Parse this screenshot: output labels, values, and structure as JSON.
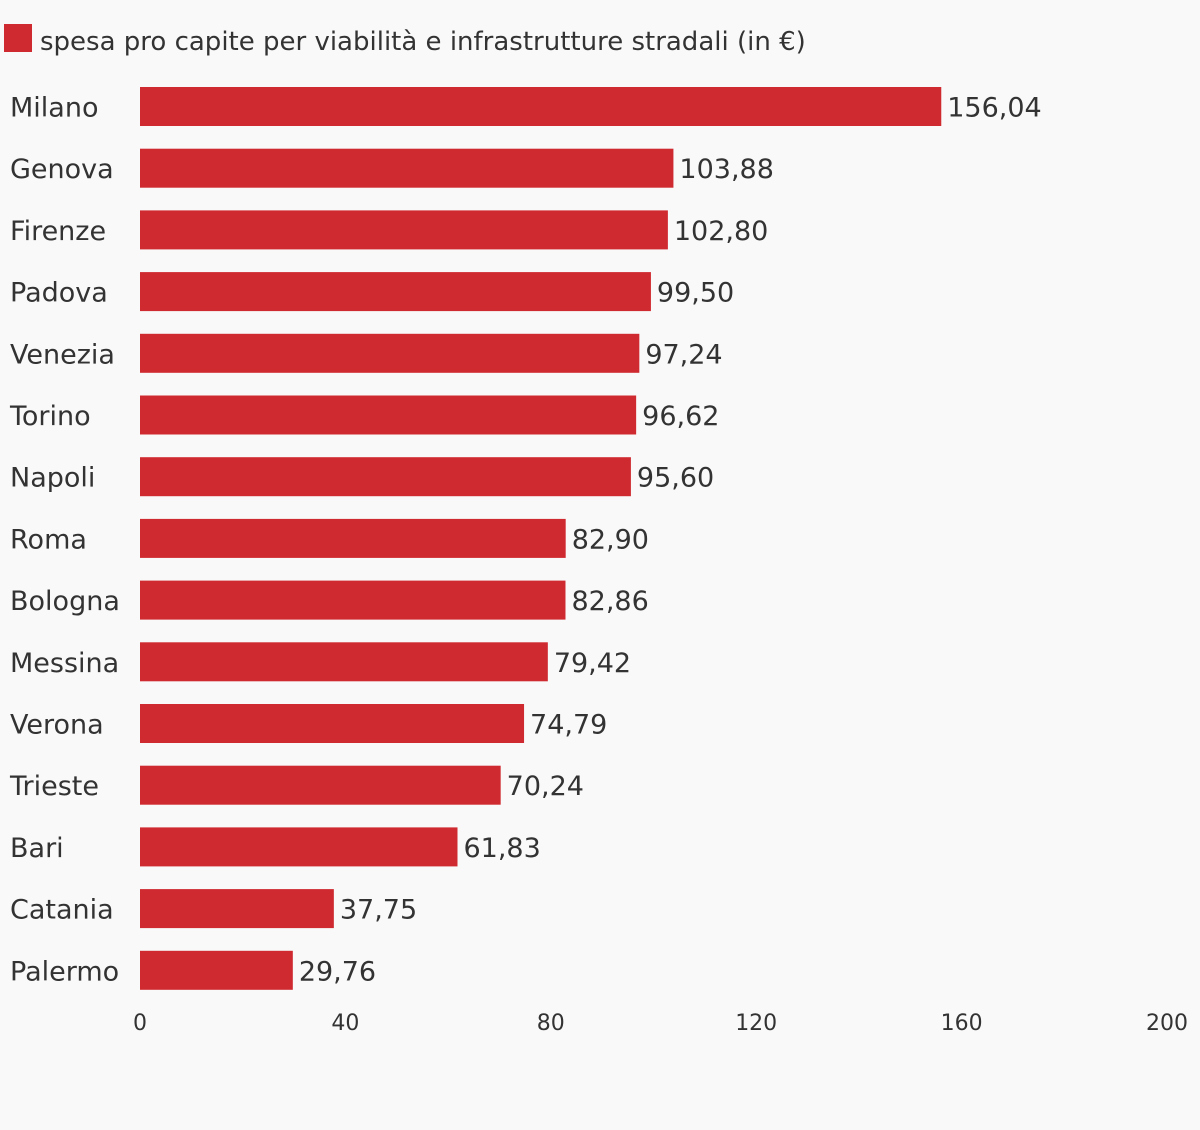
{
  "legend": {
    "label": "spesa pro capite per viabilità e infrastrutture stradali (in €)",
    "color": "#cf2a30"
  },
  "chart_data": {
    "type": "bar",
    "orientation": "horizontal",
    "categories": [
      "Milano",
      "Genova",
      "Firenze",
      "Padova",
      "Venezia",
      "Torino",
      "Napoli",
      "Roma",
      "Bologna",
      "Messina",
      "Verona",
      "Trieste",
      "Bari",
      "Catania",
      "Palermo"
    ],
    "values": [
      156.04,
      103.88,
      102.8,
      99.5,
      97.24,
      96.62,
      95.6,
      82.9,
      82.86,
      79.42,
      74.79,
      70.24,
      61.83,
      37.75,
      29.76
    ],
    "value_labels": [
      "156,04",
      "103,88",
      "102,80",
      "99,50",
      "97,24",
      "96,62",
      "95,60",
      "82,90",
      "82,86",
      "79,42",
      "74,79",
      "70,24",
      "61,83",
      "37,75",
      "29,76"
    ],
    "series": [
      {
        "name": "spesa pro capite per viabilità e infrastrutture stradali (in €)",
        "color": "#cf2a30"
      }
    ],
    "xlim": [
      0,
      200
    ],
    "x_ticks": [
      0,
      40,
      80,
      120,
      160,
      200
    ],
    "x_tick_labels": [
      "0",
      "40",
      "80",
      "120",
      "160",
      "200"
    ],
    "legend_position": "top-left",
    "grid": false
  }
}
